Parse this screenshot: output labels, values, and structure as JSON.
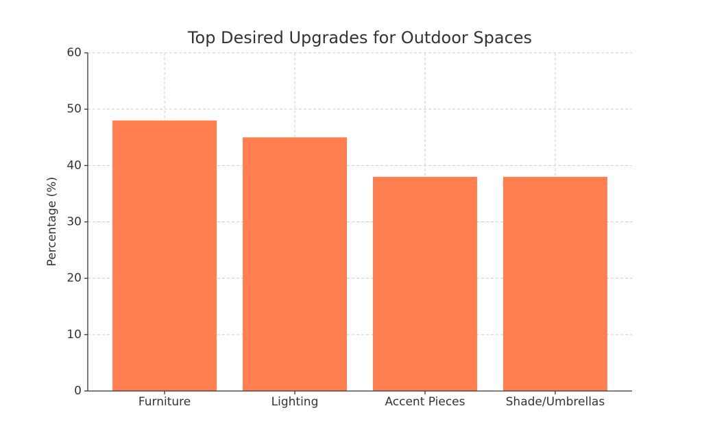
{
  "chart_data": {
    "type": "bar",
    "title": "Top Desired Upgrades for Outdoor Spaces",
    "y_label": "Percentage (%)",
    "categories": [
      "Furniture",
      "Lighting",
      "Accent Pieces",
      "Shade/Umbrellas"
    ],
    "values": [
      48,
      45,
      38,
      38
    ],
    "color": "#ff7f50",
    "ylim": [
      0,
      60
    ],
    "yticks": [
      0,
      10,
      20,
      30,
      40,
      50,
      60
    ],
    "grid": true
  }
}
